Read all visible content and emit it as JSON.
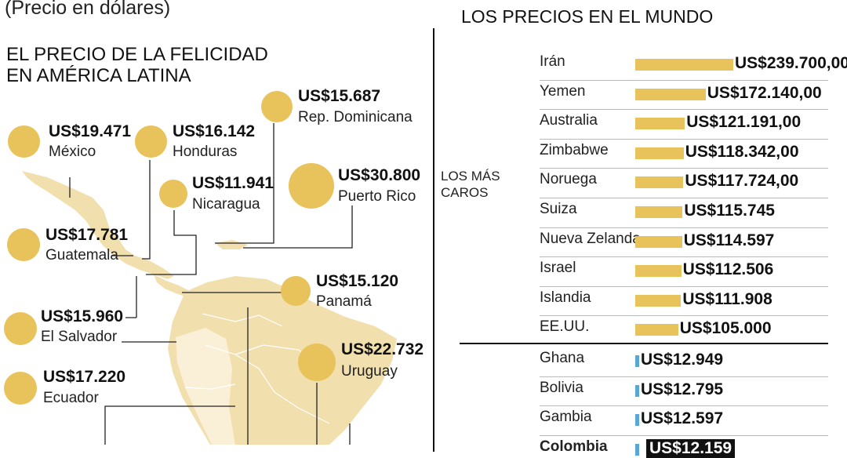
{
  "header": {
    "subtitle": "(Precio en dólares)",
    "left_title_line1": "EL PRECIO DE LA FELICIDAD",
    "left_title_line2": "EN AMÉRICA LATINA",
    "right_title": "LOS PRECIOS EN EL MUNDO"
  },
  "colors": {
    "bubble": "#e8c25a",
    "expensive_bar": "#e8c25a",
    "cheap_bar": "#5aa6d6",
    "map": "#f2dfae",
    "map_light": "#faf0d8"
  },
  "latam": [
    {
      "value": "US$19.471",
      "country": "México"
    },
    {
      "value": "US$16.142",
      "country": "Honduras"
    },
    {
      "value": "US$15.687",
      "country": "Rep. Dominicana"
    },
    {
      "value": "US$11.941",
      "country": "Nicaragua"
    },
    {
      "value": "US$30.800",
      "country": "Puerto Rico"
    },
    {
      "value": "US$17.781",
      "country": "Guatemala"
    },
    {
      "value": "US$15.120",
      "country": "Panamá"
    },
    {
      "value": "US$15.960",
      "country": "El Salvador"
    },
    {
      "value": "US$22.732",
      "country": "Uruguay"
    },
    {
      "value": "US$17.220",
      "country": "Ecuador"
    }
  ],
  "world": {
    "group_label_line1": "LOS MÁS",
    "group_label_line2": "CAROS"
  },
  "chart_data": {
    "type": "bar",
    "title": "LOS PRECIOS EN EL MUNDO",
    "categories": [
      "Irán",
      "Yemen",
      "Australia",
      "Zimbabwe",
      "Noruega",
      "Suiza",
      "Nueva Zelanda",
      "Israel",
      "Islandia",
      "EE.UU.",
      "Ghana",
      "Bolivia",
      "Gambia",
      "Colombia"
    ],
    "values": [
      239700,
      172140,
      121191,
      118342,
      117724,
      115745,
      114597,
      112506,
      111908,
      105000,
      12949,
      12795,
      12597,
      12159
    ],
    "labels": [
      "US$239.700,00",
      "US$172.140,00",
      "US$121.191,00",
      "US$118.342,00",
      "US$117.724,00",
      "US$115.745",
      "US$114.597",
      "US$112.506",
      "US$111.908",
      "US$105.000",
      "US$12.949",
      "US$12.795",
      "US$12.597",
      "US$12.159"
    ],
    "groups": [
      "expensive",
      "expensive",
      "expensive",
      "expensive",
      "expensive",
      "expensive",
      "expensive",
      "expensive",
      "expensive",
      "expensive",
      "cheap",
      "cheap",
      "cheap",
      "cheap"
    ]
  }
}
